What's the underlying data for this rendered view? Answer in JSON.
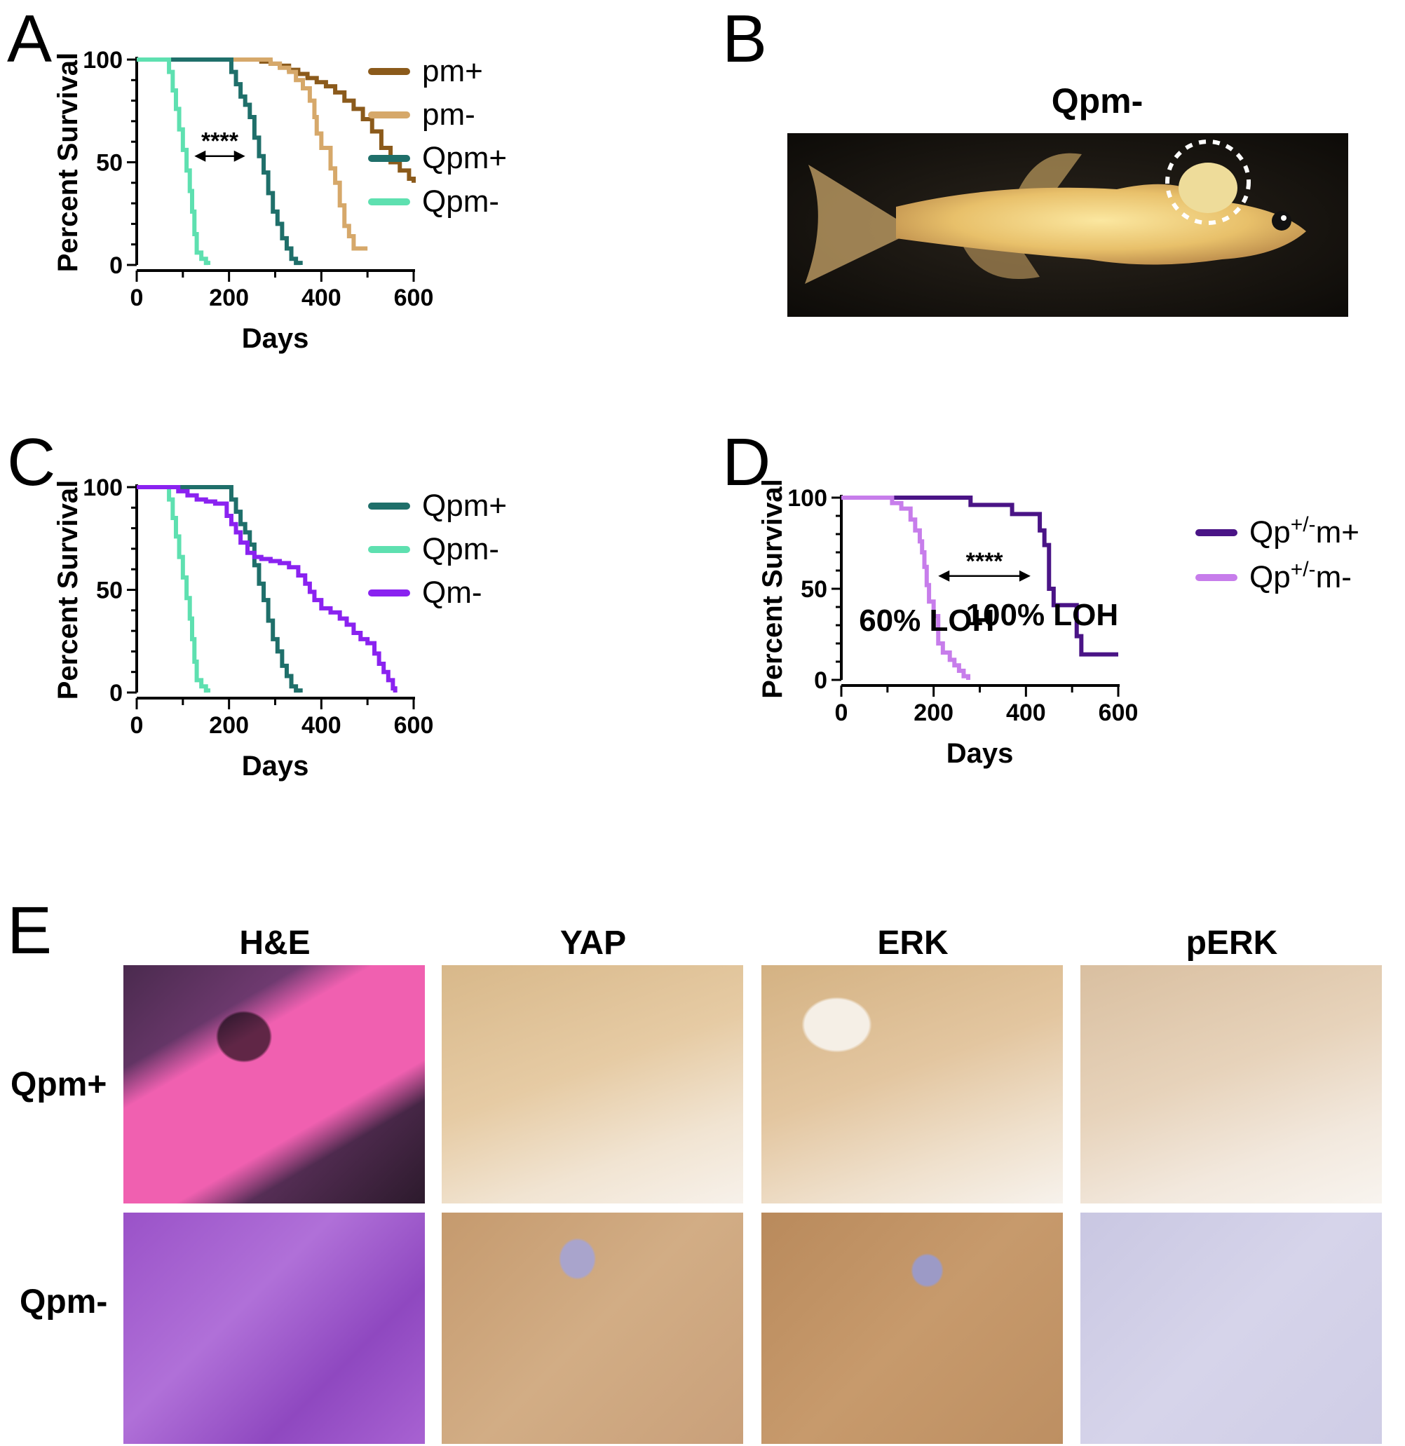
{
  "panels": {
    "a_label": "A",
    "b_label": "B",
    "c_label": "C",
    "d_label": "D",
    "e_label": "E"
  },
  "colors": {
    "pm_plus": "#8B5A1B",
    "pm_minus": "#D6A86A",
    "qpm_plus": "#1F6F6A",
    "qpm_minus": "#5EE0B0",
    "qm_minus": "#8A22F0",
    "qp_m_plus": "#4A1486",
    "qp_m_minus": "#C77DEB"
  },
  "fish_photo": {
    "title": "Qpm-"
  },
  "histology": {
    "columns": [
      "H&E",
      "YAP",
      "ERK",
      "pERK"
    ],
    "rows": [
      "Qpm+",
      "Qpm-"
    ]
  },
  "chart_data": [
    {
      "id": "A",
      "type": "line",
      "step": true,
      "xlabel": "Days",
      "ylabel": "Percent Survival",
      "xlim": [
        0,
        600
      ],
      "ylim": [
        0,
        100
      ],
      "xticks": [
        0,
        200,
        400,
        600
      ],
      "yticks": [
        0,
        50,
        100
      ],
      "legend_position": "right",
      "annotations": [
        {
          "text": "****",
          "x_from": 125,
          "x_to": 235,
          "y": 53
        }
      ],
      "series": [
        {
          "name": "pm+",
          "color": "#8B5A1B",
          "legend": [
            {
              "t": "pm",
              "sup": ""
            },
            {
              "t": "+"
            }
          ],
          "x": [
            0,
            250,
            270,
            290,
            310,
            330,
            350,
            370,
            390,
            410,
            430,
            450,
            470,
            490,
            510,
            530,
            550,
            570,
            590,
            600
          ],
          "y": [
            100,
            100,
            99,
            98,
            97,
            95,
            93,
            91,
            89,
            87,
            84,
            80,
            76,
            71,
            65,
            57,
            50,
            46,
            42,
            40
          ]
        },
        {
          "name": "pm-",
          "color": "#D6A86A",
          "x": [
            0,
            260,
            290,
            310,
            330,
            345,
            360,
            375,
            385,
            390,
            400,
            420,
            430,
            440,
            450,
            460,
            470,
            500
          ],
          "y": [
            100,
            100,
            98,
            96,
            94,
            90,
            86,
            80,
            72,
            64,
            57,
            47,
            40,
            29,
            19,
            14,
            8,
            8
          ]
        },
        {
          "name": "Qpm+",
          "color": "#1F6F6A",
          "x": [
            0,
            195,
            205,
            215,
            225,
            235,
            245,
            255,
            265,
            275,
            285,
            295,
            305,
            315,
            325,
            335,
            345,
            355
          ],
          "y": [
            100,
            100,
            94,
            88,
            82,
            78,
            72,
            62,
            53,
            45,
            35,
            26,
            20,
            13,
            8,
            3,
            1,
            0
          ]
        },
        {
          "name": "Qpm-",
          "color": "#5EE0B0",
          "x": [
            0,
            62,
            70,
            78,
            85,
            92,
            100,
            108,
            115,
            120,
            125,
            130,
            140,
            150,
            155
          ],
          "y": [
            100,
            100,
            94,
            85,
            76,
            66,
            56,
            46,
            36,
            26,
            15,
            6,
            3,
            1,
            0
          ]
        }
      ]
    },
    {
      "id": "C",
      "type": "line",
      "step": true,
      "xlabel": "Days",
      "ylabel": "Percent Survival",
      "xlim": [
        0,
        600
      ],
      "ylim": [
        0,
        100
      ],
      "xticks": [
        0,
        200,
        400,
        600
      ],
      "yticks": [
        0,
        50,
        100
      ],
      "legend_position": "right",
      "series": [
        {
          "name": "Qpm+",
          "color": "#1F6F6A",
          "x": [
            0,
            195,
            205,
            215,
            225,
            235,
            245,
            255,
            265,
            275,
            285,
            295,
            305,
            315,
            325,
            335,
            345,
            355
          ],
          "y": [
            100,
            100,
            94,
            88,
            82,
            78,
            72,
            62,
            53,
            45,
            35,
            26,
            20,
            13,
            8,
            3,
            1,
            0
          ]
        },
        {
          "name": "Qpm-",
          "color": "#5EE0B0",
          "x": [
            0,
            62,
            70,
            78,
            85,
            92,
            100,
            108,
            115,
            120,
            125,
            130,
            140,
            150,
            155
          ],
          "y": [
            100,
            100,
            94,
            85,
            76,
            66,
            56,
            46,
            36,
            26,
            15,
            6,
            3,
            1,
            0
          ]
        },
        {
          "name": "Qm-",
          "color": "#8A22F0",
          "x": [
            0,
            70,
            90,
            110,
            130,
            150,
            170,
            195,
            205,
            215,
            225,
            240,
            255,
            270,
            290,
            310,
            330,
            350,
            365,
            375,
            385,
            400,
            420,
            440,
            455,
            470,
            485,
            500,
            515,
            525,
            535,
            545,
            555,
            560
          ],
          "y": [
            100,
            100,
            98,
            96,
            94,
            93,
            92,
            86,
            82,
            78,
            73,
            68,
            66,
            65,
            64,
            63,
            61,
            57,
            53,
            49,
            45,
            41,
            39,
            36,
            33,
            29,
            26,
            24,
            19,
            14,
            10,
            6,
            2,
            0
          ]
        }
      ]
    },
    {
      "id": "D",
      "type": "line",
      "step": true,
      "xlabel": "Days",
      "ylabel": "Percent Survival",
      "xlim": [
        0,
        600
      ],
      "ylim": [
        0,
        100
      ],
      "xticks": [
        0,
        200,
        400,
        600
      ],
      "yticks": [
        0,
        50,
        100
      ],
      "legend_position": "right",
      "annotations": [
        {
          "text": "****",
          "x_from": 210,
          "x_to": 410,
          "y": 57
        },
        {
          "text": "60% LOH",
          "x": 185,
          "y": 27
        },
        {
          "text": "100% LOH",
          "x": 435,
          "y": 30
        }
      ],
      "series": [
        {
          "name": "Qp+/-m+",
          "color": "#4A1486",
          "x": [
            0,
            200,
            280,
            370,
            430,
            440,
            450,
            460,
            510,
            520,
            600
          ],
          "y": [
            100,
            100,
            96,
            91,
            82,
            74,
            50,
            41,
            24,
            14,
            14
          ]
        },
        {
          "name": "Qp+/-m-",
          "color": "#C77DEB",
          "x": [
            0,
            80,
            110,
            130,
            150,
            160,
            170,
            175,
            180,
            185,
            190,
            200,
            210,
            220,
            235,
            245,
            255,
            265,
            275
          ],
          "y": [
            100,
            100,
            97,
            94,
            88,
            82,
            76,
            70,
            62,
            52,
            43,
            35,
            20,
            15,
            11,
            8,
            5,
            2,
            0
          ]
        }
      ]
    }
  ]
}
